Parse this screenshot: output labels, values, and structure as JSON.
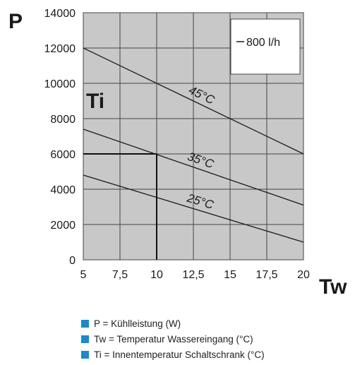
{
  "chart_data": {
    "type": "line",
    "ylabel": "P",
    "xlabel": "Tw",
    "inset_label": "Ti",
    "xlim": [
      5,
      20
    ],
    "ylim": [
      0,
      14000
    ],
    "x_ticks": [
      "5",
      "7,5",
      "10",
      "12,5",
      "15",
      "17,5",
      "20"
    ],
    "x_tick_values": [
      5,
      7.5,
      10,
      12.5,
      15,
      17.5,
      20
    ],
    "y_ticks": [
      "0",
      "2000",
      "4000",
      "6000",
      "8000",
      "10000",
      "12000",
      "14000"
    ],
    "y_tick_values": [
      0,
      2000,
      4000,
      6000,
      8000,
      10000,
      12000,
      14000
    ],
    "series": [
      {
        "name": "45°C",
        "x": [
          5,
          20
        ],
        "y": [
          12000,
          6000
        ]
      },
      {
        "name": "35°C",
        "x": [
          5,
          20
        ],
        "y": [
          7400,
          3100
        ]
      },
      {
        "name": "25°C",
        "x": [
          5,
          20
        ],
        "y": [
          4800,
          1000
        ]
      }
    ],
    "guide_point": {
      "x": 10,
      "y": 6000
    },
    "legend_box": "800 l/h",
    "grid": true,
    "colors": {
      "plot_bg": "#c8c8c8",
      "grid": "#444444",
      "line": "#1a1a1a",
      "legend_marker": "#1e88c9"
    }
  },
  "legend_items": [
    "P = Kühlleistung (W)",
    "Tw = Temperatur Wassereingang (°C)",
    "Ti =  Innentemperatur Schaltschrank (°C)"
  ]
}
